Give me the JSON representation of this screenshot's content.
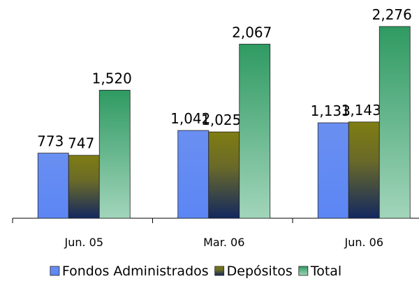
{
  "chart_data": {
    "type": "bar",
    "categories": [
      "Jun. 05",
      "Mar. 06",
      "Jun. 06"
    ],
    "series": [
      {
        "name": "Fondos Administrados",
        "color": "#6a8ff2",
        "values": [
          773,
          1042,
          1133
        ],
        "value_labels": [
          "773",
          "1,042",
          "1,133"
        ]
      },
      {
        "name": "Depósitos",
        "color": "#7f7d12",
        "values": [
          747,
          1025,
          1143
        ],
        "value_labels": [
          "747",
          "1,025",
          "1,143"
        ]
      },
      {
        "name": "Total",
        "color": "#2f9a62",
        "values": [
          1520,
          2067,
          2276
        ],
        "value_labels": [
          "1,520",
          "2,067",
          "2,276"
        ]
      }
    ]
  }
}
